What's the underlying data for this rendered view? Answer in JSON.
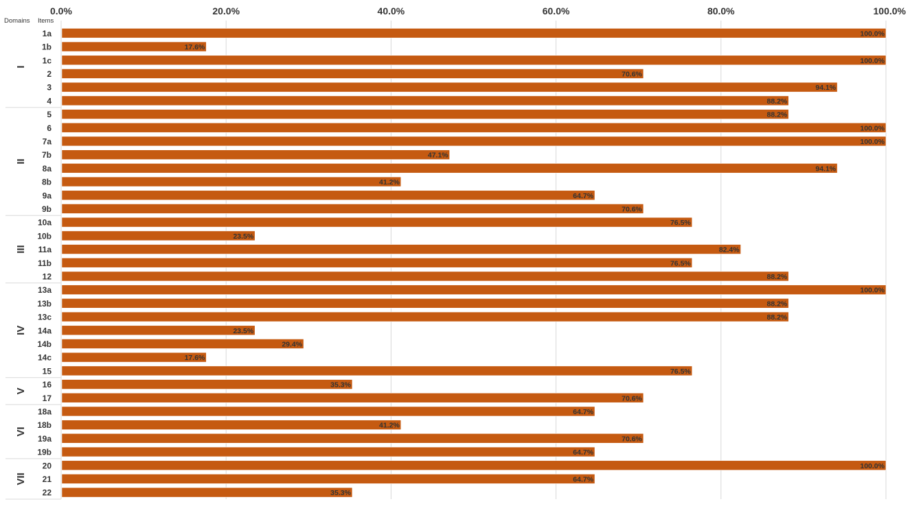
{
  "chart_data": {
    "type": "bar",
    "orientation": "horizontal",
    "column_headers": {
      "domains": "Domains",
      "items": "Items"
    },
    "xlim": [
      0,
      100
    ],
    "x_ticks": [
      "0.0%",
      "20.0%",
      "40.0%",
      "60.0%",
      "80.0%",
      "100.0%"
    ],
    "x_tick_values": [
      0,
      20,
      40,
      60,
      80,
      100
    ],
    "x_axis_position": "top",
    "grid": true,
    "bar_color": "#C55A11",
    "domains": [
      {
        "name": "I",
        "items": [
          {
            "label": "1a",
            "value": 100.0,
            "value_label": "100.0%"
          },
          {
            "label": "1b",
            "value": 17.6,
            "value_label": "17.6%"
          },
          {
            "label": "1c",
            "value": 100.0,
            "value_label": "100.0%"
          },
          {
            "label": "2",
            "value": 70.6,
            "value_label": "70.6%"
          },
          {
            "label": "3",
            "value": 94.1,
            "value_label": "94.1%"
          },
          {
            "label": "4",
            "value": 88.2,
            "value_label": "88.2%"
          }
        ]
      },
      {
        "name": "II",
        "items": [
          {
            "label": "5",
            "value": 88.2,
            "value_label": "88.2%"
          },
          {
            "label": "6",
            "value": 100.0,
            "value_label": "100.0%"
          },
          {
            "label": "7a",
            "value": 100.0,
            "value_label": "100.0%"
          },
          {
            "label": "7b",
            "value": 47.1,
            "value_label": "47.1%"
          },
          {
            "label": "8a",
            "value": 94.1,
            "value_label": "94.1%"
          },
          {
            "label": "8b",
            "value": 41.2,
            "value_label": "41.2%"
          },
          {
            "label": "9a",
            "value": 64.7,
            "value_label": "64.7%"
          },
          {
            "label": "9b",
            "value": 70.6,
            "value_label": "70.6%"
          }
        ]
      },
      {
        "name": "III",
        "items": [
          {
            "label": "10a",
            "value": 76.5,
            "value_label": "76.5%"
          },
          {
            "label": "10b",
            "value": 23.5,
            "value_label": "23.5%"
          },
          {
            "label": "11a",
            "value": 82.4,
            "value_label": "82.4%"
          },
          {
            "label": "11b",
            "value": 76.5,
            "value_label": "76.5%"
          },
          {
            "label": "12",
            "value": 88.2,
            "value_label": "88.2%"
          }
        ]
      },
      {
        "name": "IV",
        "items": [
          {
            "label": "13a",
            "value": 100.0,
            "value_label": "100.0%"
          },
          {
            "label": "13b",
            "value": 88.2,
            "value_label": "88.2%"
          },
          {
            "label": "13c",
            "value": 88.2,
            "value_label": "88.2%"
          },
          {
            "label": "14a",
            "value": 23.5,
            "value_label": "23.5%"
          },
          {
            "label": "14b",
            "value": 29.4,
            "value_label": "29.4%"
          },
          {
            "label": "14c",
            "value": 17.6,
            "value_label": "17.6%"
          },
          {
            "label": "15",
            "value": 76.5,
            "value_label": "76.5%"
          }
        ]
      },
      {
        "name": "V",
        "items": [
          {
            "label": "16",
            "value": 35.3,
            "value_label": "35.3%"
          },
          {
            "label": "17",
            "value": 70.6,
            "value_label": "70.6%"
          }
        ]
      },
      {
        "name": "VI",
        "items": [
          {
            "label": "18a",
            "value": 64.7,
            "value_label": "64.7%"
          },
          {
            "label": "18b",
            "value": 41.2,
            "value_label": "41.2%"
          },
          {
            "label": "19a",
            "value": 70.6,
            "value_label": "70.6%"
          },
          {
            "label": "19b",
            "value": 64.7,
            "value_label": "64.7%"
          }
        ]
      },
      {
        "name": "VII",
        "items": [
          {
            "label": "20",
            "value": 100.0,
            "value_label": "100.0%"
          },
          {
            "label": "21",
            "value": 64.7,
            "value_label": "64.7%"
          },
          {
            "label": "22",
            "value": 35.3,
            "value_label": "35.3%"
          }
        ]
      }
    ]
  }
}
